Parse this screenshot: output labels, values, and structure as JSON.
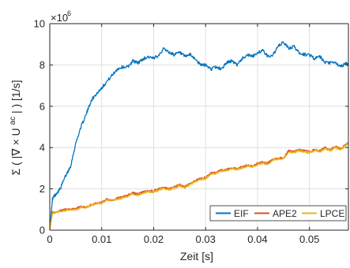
{
  "chart_data": {
    "type": "line",
    "title": "",
    "xlabel": "Zeit [s]",
    "ylabel": "Σ ( |∇ × U",
    "ylabel_superscript": "ac",
    "ylabel_suffix": "| ) [1/s]",
    "y_exponent_label": "×10",
    "y_exponent_power": "6",
    "xlim": [
      0,
      0.0575
    ],
    "ylim": [
      0,
      10
    ],
    "x_ticks": [
      0,
      0.01,
      0.02,
      0.03,
      0.04,
      0.05
    ],
    "x_tick_labels": [
      "0",
      "0.01",
      "0.02",
      "0.03",
      "0.04",
      "0.05"
    ],
    "y_ticks": [
      0,
      2,
      4,
      6,
      8,
      10
    ],
    "y_tick_labels": [
      "0",
      "2",
      "4",
      "6",
      "8",
      "10"
    ],
    "grid": true,
    "legend_position": "bottom-right",
    "legend_orientation": "horizontal",
    "series": [
      {
        "name": "EIF",
        "color": "#0072BD",
        "x": [
          0,
          0.0005,
          0.001,
          0.002,
          0.003,
          0.004,
          0.005,
          0.006,
          0.007,
          0.008,
          0.009,
          0.01,
          0.011,
          0.012,
          0.013,
          0.014,
          0.015,
          0.016,
          0.017,
          0.018,
          0.019,
          0.02,
          0.021,
          0.022,
          0.023,
          0.024,
          0.025,
          0.026,
          0.027,
          0.028,
          0.029,
          0.03,
          0.031,
          0.032,
          0.033,
          0.034,
          0.035,
          0.036,
          0.037,
          0.038,
          0.039,
          0.04,
          0.041,
          0.042,
          0.043,
          0.044,
          0.045,
          0.046,
          0.047,
          0.048,
          0.049,
          0.05,
          0.051,
          0.052,
          0.053,
          0.054,
          0.055,
          0.056,
          0.057,
          0.0575
        ],
        "y": [
          0,
          1.5,
          1.7,
          2.0,
          2.6,
          3.1,
          4.2,
          5.0,
          5.6,
          6.3,
          6.6,
          6.9,
          7.2,
          7.5,
          7.8,
          7.9,
          7.9,
          8.2,
          8.1,
          8.3,
          8.4,
          8.3,
          8.5,
          8.8,
          8.6,
          8.5,
          8.6,
          8.4,
          8.5,
          8.3,
          8.0,
          8.0,
          7.8,
          7.9,
          7.8,
          8.1,
          8.2,
          8.0,
          8.3,
          8.5,
          8.4,
          8.6,
          8.7,
          8.4,
          8.5,
          8.9,
          9.1,
          8.8,
          8.9,
          8.6,
          8.5,
          8.5,
          8.3,
          8.4,
          8.1,
          8.1,
          8.1,
          7.9,
          8.1,
          8.0
        ]
      },
      {
        "name": "APE2",
        "color": "#D95319",
        "x": [
          0,
          0.0005,
          0.001,
          0.002,
          0.003,
          0.004,
          0.005,
          0.006,
          0.007,
          0.008,
          0.009,
          0.01,
          0.011,
          0.012,
          0.013,
          0.014,
          0.015,
          0.016,
          0.017,
          0.018,
          0.019,
          0.02,
          0.021,
          0.022,
          0.023,
          0.024,
          0.025,
          0.026,
          0.027,
          0.028,
          0.029,
          0.03,
          0.031,
          0.032,
          0.033,
          0.034,
          0.035,
          0.036,
          0.037,
          0.038,
          0.039,
          0.04,
          0.041,
          0.042,
          0.043,
          0.044,
          0.045,
          0.046,
          0.047,
          0.048,
          0.049,
          0.05,
          0.051,
          0.052,
          0.053,
          0.054,
          0.055,
          0.056,
          0.057,
          0.0575
        ],
        "y": [
          0,
          0.85,
          0.85,
          0.95,
          1.0,
          1.0,
          1.05,
          1.15,
          1.1,
          1.25,
          1.3,
          1.35,
          1.5,
          1.45,
          1.55,
          1.6,
          1.7,
          1.8,
          1.75,
          1.85,
          1.9,
          1.9,
          2.0,
          2.05,
          2.0,
          2.1,
          2.2,
          2.1,
          2.25,
          2.4,
          2.5,
          2.55,
          2.75,
          2.8,
          2.9,
          2.95,
          3.0,
          3.0,
          3.05,
          3.15,
          3.1,
          3.25,
          3.3,
          3.25,
          3.45,
          3.5,
          3.5,
          3.85,
          3.8,
          3.9,
          3.85,
          3.8,
          3.9,
          3.85,
          4.0,
          3.9,
          4.05,
          3.95,
          4.15,
          4.25
        ]
      },
      {
        "name": "LPCE",
        "color": "#EDB120",
        "x": [
          0,
          0.0005,
          0.001,
          0.002,
          0.003,
          0.004,
          0.005,
          0.006,
          0.007,
          0.008,
          0.009,
          0.01,
          0.011,
          0.012,
          0.013,
          0.014,
          0.015,
          0.016,
          0.017,
          0.018,
          0.019,
          0.02,
          0.021,
          0.022,
          0.023,
          0.024,
          0.025,
          0.026,
          0.027,
          0.028,
          0.029,
          0.03,
          0.031,
          0.032,
          0.033,
          0.034,
          0.035,
          0.036,
          0.037,
          0.038,
          0.039,
          0.04,
          0.041,
          0.042,
          0.043,
          0.044,
          0.045,
          0.046,
          0.047,
          0.048,
          0.049,
          0.05,
          0.051,
          0.052,
          0.053,
          0.054,
          0.055,
          0.056,
          0.057,
          0.0575
        ],
        "y": [
          0,
          0.8,
          0.85,
          0.9,
          0.95,
          1.0,
          1.0,
          1.1,
          1.1,
          1.2,
          1.3,
          1.3,
          1.45,
          1.45,
          1.5,
          1.55,
          1.65,
          1.75,
          1.7,
          1.8,
          1.85,
          1.85,
          1.95,
          2.0,
          1.95,
          2.05,
          2.15,
          2.05,
          2.2,
          2.35,
          2.45,
          2.5,
          2.7,
          2.75,
          2.85,
          2.9,
          2.95,
          2.95,
          3.0,
          3.1,
          3.05,
          3.2,
          3.25,
          3.2,
          3.4,
          3.45,
          3.45,
          3.8,
          3.75,
          3.85,
          3.8,
          3.75,
          3.85,
          3.8,
          3.95,
          3.85,
          4.0,
          3.9,
          4.1,
          4.2
        ]
      }
    ]
  }
}
